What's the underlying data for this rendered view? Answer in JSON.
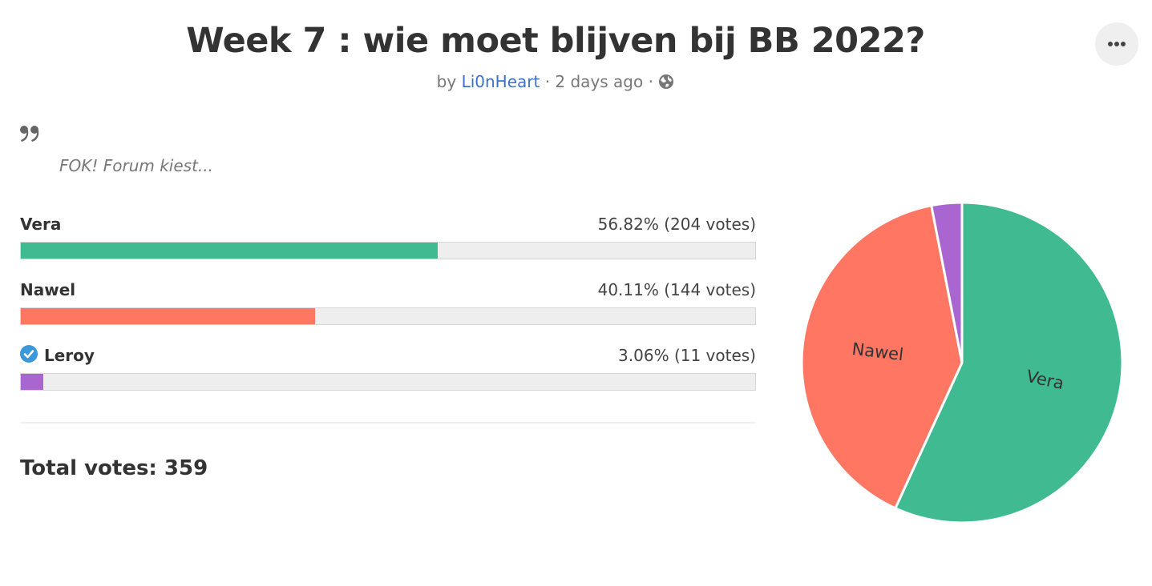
{
  "poll": {
    "title": "Week 7 : wie moet blijven bij BB 2022?",
    "by_prefix": "by",
    "author": "Li0nHeart",
    "separator": "·",
    "time_ago": "2 days ago",
    "visibility_icon": "globe-icon",
    "more_icon": "ellipsis-icon",
    "quote_icon": "quote-icon",
    "description": "FOK! Forum kiest...",
    "total_label": "Total votes:",
    "total_votes": "359"
  },
  "options": [
    {
      "label": "Vera",
      "percent": 56.82,
      "percent_text": "56.82%",
      "votes_text": "(204 votes)",
      "votes": 204,
      "color": "#3fba91",
      "checked": false
    },
    {
      "label": "Nawel",
      "percent": 40.11,
      "percent_text": "40.11%",
      "votes_text": "(144 votes)",
      "votes": 144,
      "color": "#ff7663",
      "checked": false
    },
    {
      "label": "Leroy",
      "percent": 3.06,
      "percent_text": "3.06%",
      "votes_text": "(11 votes)",
      "votes": 11,
      "color": "#a965d0",
      "checked": true
    }
  ],
  "chart_data": {
    "type": "pie",
    "categories": [
      "Vera",
      "Nawel",
      "Leroy"
    ],
    "values": [
      204,
      144,
      11
    ],
    "colors": [
      "#3fba91",
      "#ff7663",
      "#a965d0"
    ],
    "slice_labels": [
      "Vera",
      "Nawel",
      ""
    ]
  }
}
